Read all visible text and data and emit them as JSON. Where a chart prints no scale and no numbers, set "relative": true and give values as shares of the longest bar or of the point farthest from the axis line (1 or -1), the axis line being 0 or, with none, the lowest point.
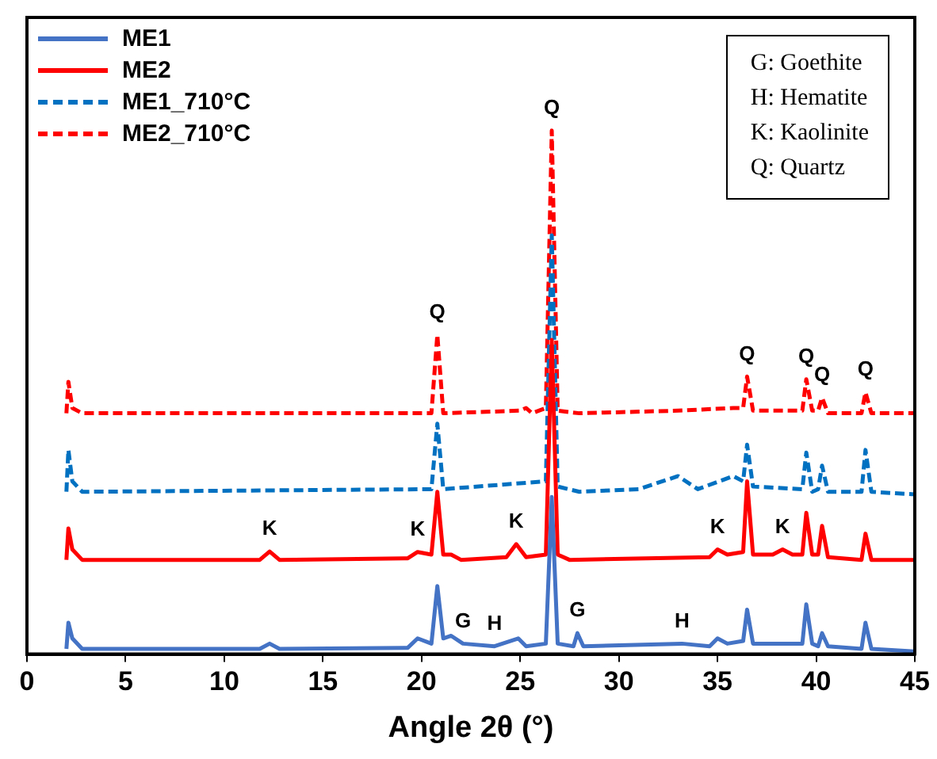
{
  "chart_data": {
    "type": "line",
    "relative": true,
    "xlabel": "Angle 2θ (°)",
    "xlim": [
      0,
      45
    ],
    "xticks": [
      0,
      5,
      10,
      15,
      20,
      25,
      30,
      35,
      40,
      45
    ],
    "tick_labels": "x",
    "grid": false,
    "legend": "top left",
    "marker": "none",
    "series": [
      {
        "name": "ME1",
        "color": "#4472c4",
        "line_style": "solid",
        "x": [
          2.0,
          2.1,
          2.3,
          2.8,
          11.8,
          12.3,
          12.8,
          19.3,
          19.8,
          20.5,
          20.8,
          21.1,
          21.5,
          22.1,
          23.7,
          24.9,
          25.3,
          26.3,
          26.6,
          26.9,
          27.7,
          27.9,
          28.2,
          33.2,
          34.6,
          35,
          35.5,
          36.3,
          36.5,
          36.8,
          39.3,
          39.5,
          39.8,
          40.1,
          40.3,
          40.6,
          42.3,
          42.5,
          42.8,
          45
        ],
        "values": [
          0.01,
          0.06,
          0.03,
          0.01,
          0.01,
          0.02,
          0.01,
          0.012,
          0.03,
          0.02,
          0.13,
          0.03,
          0.035,
          0.02,
          0.015,
          0.03,
          0.015,
          0.02,
          0.3,
          0.02,
          0.015,
          0.04,
          0.015,
          0.02,
          0.015,
          0.03,
          0.02,
          0.025,
          0.085,
          0.02,
          0.02,
          0.095,
          0.02,
          0.015,
          0.04,
          0.015,
          0.01,
          0.06,
          0.01,
          0.005
        ]
      },
      {
        "name": "ME2",
        "color": "#ff0000",
        "line_style": "solid",
        "x": [
          2.0,
          2.1,
          2.3,
          2.8,
          11.8,
          12.3,
          12.8,
          19.3,
          19.8,
          20.5,
          20.8,
          21.1,
          21.5,
          22,
          24.3,
          24.8,
          25.3,
          26.3,
          26.6,
          26.9,
          27.5,
          34.6,
          35,
          35.5,
          36.3,
          36.5,
          36.8,
          37.8,
          38.3,
          38.8,
          39.3,
          39.5,
          39.8,
          40.1,
          40.3,
          40.6,
          42.3,
          42.5,
          42.8,
          45
        ],
        "values": [
          0.18,
          0.24,
          0.2,
          0.18,
          0.18,
          0.196,
          0.18,
          0.183,
          0.195,
          0.19,
          0.31,
          0.19,
          0.19,
          0.18,
          0.185,
          0.21,
          0.185,
          0.19,
          0.6,
          0.19,
          0.18,
          0.185,
          0.2,
          0.19,
          0.195,
          0.33,
          0.19,
          0.19,
          0.2,
          0.19,
          0.19,
          0.27,
          0.19,
          0.19,
          0.245,
          0.185,
          0.18,
          0.23,
          0.18,
          0.18
        ]
      },
      {
        "name": "ME1_710°C",
        "color": "#0070c0",
        "line_style": "dashed",
        "x": [
          2.0,
          2.1,
          2.3,
          2.8,
          20.5,
          20.8,
          21.1,
          26.3,
          26.6,
          26.9,
          28,
          31,
          33,
          34,
          35.8,
          36.3,
          36.5,
          36.8,
          39.3,
          39.5,
          39.8,
          40.1,
          40.3,
          40.6,
          42.3,
          42.5,
          42.8,
          45
        ],
        "values": [
          0.31,
          0.39,
          0.33,
          0.31,
          0.315,
          0.44,
          0.315,
          0.33,
          0.8,
          0.32,
          0.31,
          0.315,
          0.34,
          0.315,
          0.34,
          0.33,
          0.4,
          0.32,
          0.315,
          0.385,
          0.31,
          0.315,
          0.36,
          0.31,
          0.31,
          0.39,
          0.31,
          0.305
        ]
      },
      {
        "name": "ME2_710°C",
        "color": "#ff0000",
        "line_style": "dashed",
        "x": [
          2.0,
          2.1,
          2.3,
          2.8,
          20.5,
          20.8,
          21.1,
          25,
          25.3,
          25.6,
          26.3,
          26.6,
          26.9,
          28,
          33,
          35.8,
          36.3,
          36.5,
          36.8,
          39.3,
          39.5,
          39.8,
          40.1,
          40.3,
          40.6,
          42.3,
          42.5,
          42.8,
          45
        ],
        "values": [
          0.46,
          0.52,
          0.47,
          0.46,
          0.46,
          0.61,
          0.46,
          0.465,
          0.47,
          0.46,
          0.47,
          1,
          0.465,
          0.46,
          0.465,
          0.47,
          0.47,
          0.53,
          0.465,
          0.465,
          0.525,
          0.465,
          0.465,
          0.49,
          0.46,
          0.46,
          0.5,
          0.46,
          0.46
        ]
      }
    ],
    "annotations": [
      "G: Goethite",
      "H: Hematite",
      "K: Kaolinite",
      "Q: Quartz",
      {
        "text": "Q",
        "x": 20.8,
        "y": 0.61
      },
      {
        "text": "Q",
        "x": 26.6,
        "y": 1
      },
      {
        "text": "Q",
        "x": 36.5,
        "y": 0.53
      },
      {
        "text": "Q",
        "x": 39.5,
        "y": 0.525
      },
      {
        "text": "Q",
        "x": 40.3,
        "y": 0.49
      },
      {
        "text": "Q",
        "x": 42.5,
        "y": 0.5
      },
      {
        "text": "K",
        "x": 12.3,
        "y": 0.196
      },
      {
        "text": "K",
        "x": 19.8,
        "y": 0.195
      },
      {
        "text": "K",
        "x": 24.8,
        "y": 0.21
      },
      {
        "text": "K",
        "x": 35,
        "y": 0.2
      },
      {
        "text": "K",
        "x": 38.3,
        "y": 0.2
      },
      {
        "text": "G",
        "x": 22.1,
        "y": 0.02
      },
      {
        "text": "H",
        "x": 23.7,
        "y": 0.015
      },
      {
        "text": "G",
        "x": 27.9,
        "y": 0.04
      },
      {
        "text": "H",
        "x": 33.2,
        "y": 0.02
      }
    ]
  }
}
